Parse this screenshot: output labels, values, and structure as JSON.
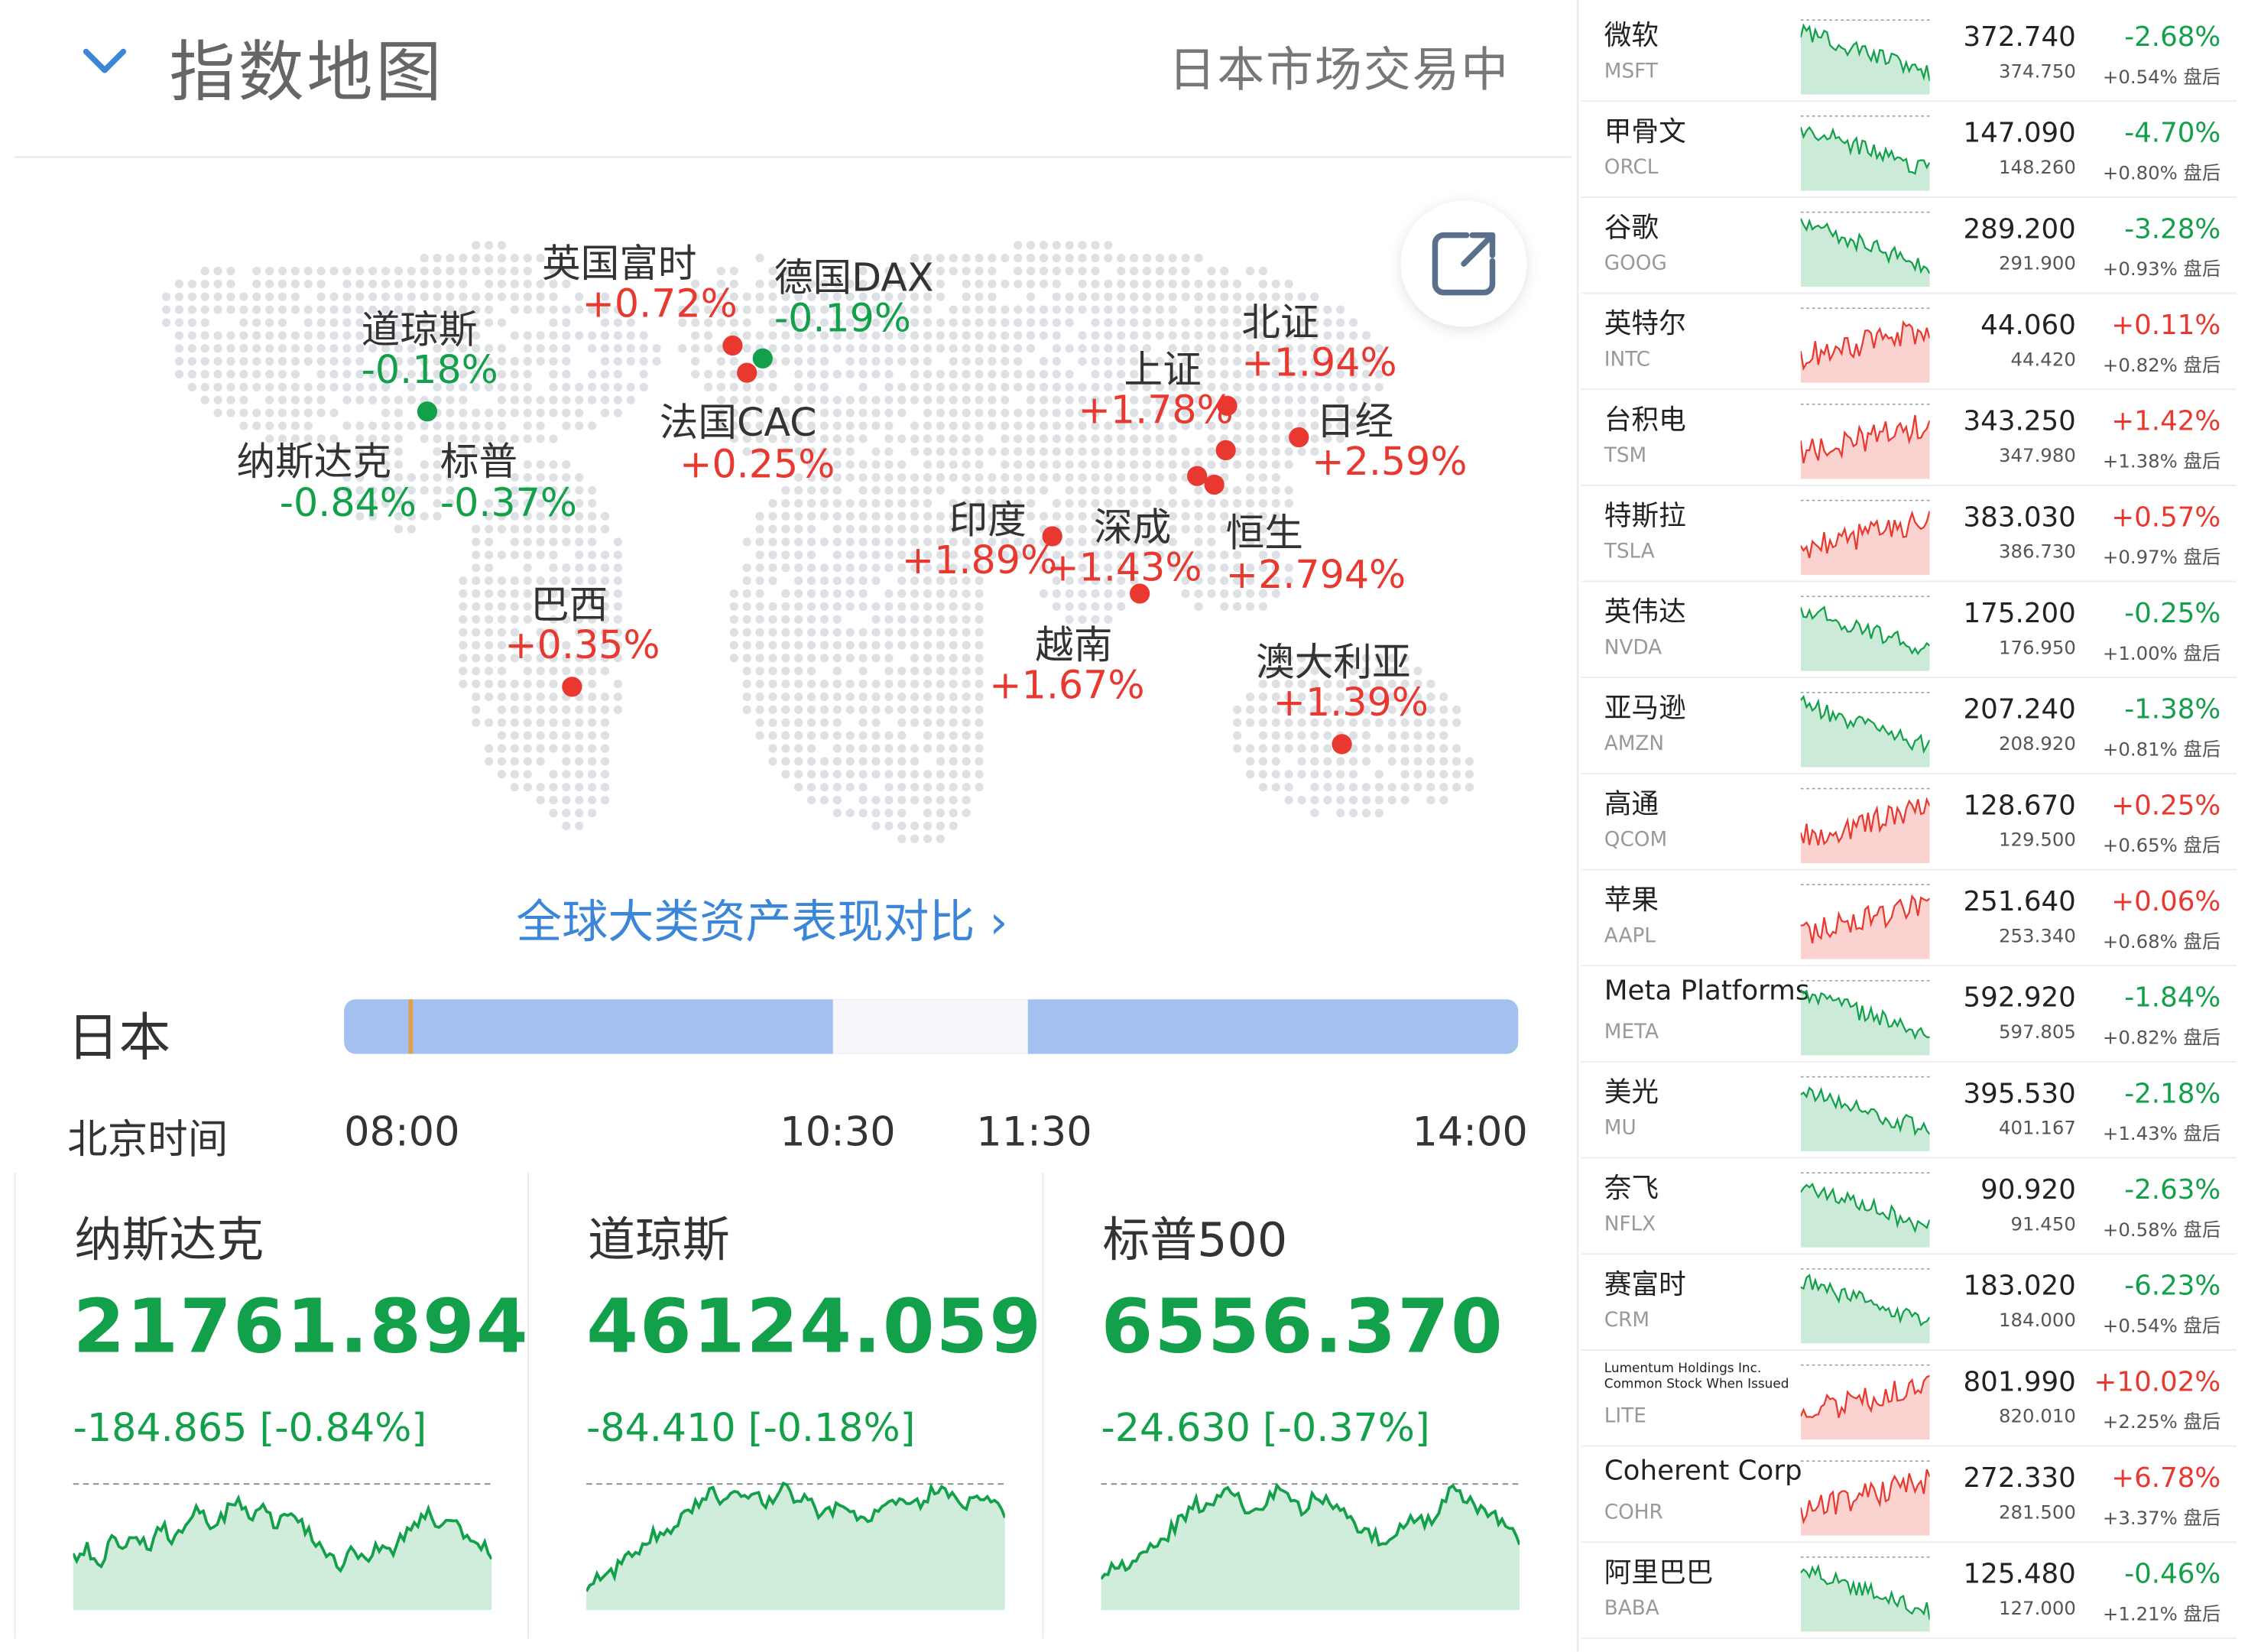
{
  "header": {
    "title": "指数地图",
    "status": "日本市场交易中"
  },
  "map_markers": [
    {
      "name": "道琼斯",
      "value": "-0.18%",
      "color": "green"
    },
    {
      "name": "纳斯达克",
      "value": "-0.84%",
      "color": "green"
    },
    {
      "name": "标普",
      "value": "-0.37%",
      "color": "green"
    },
    {
      "name": "英国富时",
      "value": "+0.72%",
      "color": "red"
    },
    {
      "name": "德国DAX",
      "value": "-0.19%",
      "color": "green"
    },
    {
      "name": "法国CAC",
      "value": "+0.25%",
      "color": "red"
    },
    {
      "name": "北证",
      "value": "+1.94%",
      "color": "red"
    },
    {
      "name": "上证",
      "value": "+1.78%",
      "color": "red"
    },
    {
      "name": "日经",
      "value": "+2.59%",
      "color": "red"
    },
    {
      "name": "印度",
      "value": "+1.89%",
      "color": "red"
    },
    {
      "name": "深成",
      "value": "+1.43%",
      "color": "red"
    },
    {
      "name": "恒生",
      "value": "+2.794%",
      "color": "red"
    },
    {
      "name": "巴西",
      "value": "+0.35%",
      "color": "red"
    },
    {
      "name": "越南",
      "value": "+1.67%",
      "color": "red"
    },
    {
      "name": "澳大利亚",
      "value": "+1.39%",
      "color": "red"
    }
  ],
  "compare_link": "全球大类资产表现对比 ›",
  "timeline": {
    "market": "日本",
    "label": "北京时间",
    "times": [
      "08:00",
      "10:30",
      "11:30",
      "14:00"
    ]
  },
  "indices": [
    {
      "name": "纳斯达克",
      "value": "21761.894",
      "change": "-184.865 [-0.84%]",
      "series": [
        0.35,
        0.45,
        0.3,
        0.5,
        0.4,
        0.55,
        0.45,
        0.62,
        0.5,
        0.7,
        0.75,
        0.6,
        0.72,
        0.85,
        0.7,
        0.78,
        0.6,
        0.75,
        0.65,
        0.5,
        0.38,
        0.3,
        0.42,
        0.35,
        0.45,
        0.4,
        0.55,
        0.62,
        0.7,
        0.58,
        0.66,
        0.55,
        0.45,
        0.4
      ]
    },
    {
      "name": "道琼斯",
      "value": "46124.059",
      "change": "-84.410 [-0.18%]",
      "series": [
        0.1,
        0.2,
        0.25,
        0.38,
        0.45,
        0.55,
        0.6,
        0.72,
        0.8,
        0.88,
        0.82,
        0.9,
        0.86,
        0.78,
        0.92,
        0.85,
        0.8,
        0.7,
        0.75,
        0.72,
        0.68,
        0.74,
        0.8,
        0.76,
        0.82,
        0.9,
        0.85,
        0.8,
        0.84,
        0.78,
        0.72
      ]
    },
    {
      "name": "标普500",
      "value": "6556.370",
      "change": "-24.630 [-0.37%]",
      "series": [
        0.2,
        0.28,
        0.3,
        0.42,
        0.5,
        0.55,
        0.68,
        0.8,
        0.75,
        0.92,
        0.85,
        0.7,
        0.78,
        0.9,
        0.82,
        0.75,
        0.88,
        0.8,
        0.72,
        0.6,
        0.55,
        0.48,
        0.6,
        0.7,
        0.62,
        0.72,
        0.9,
        0.82,
        0.75,
        0.7,
        0.6,
        0.5
      ]
    }
  ],
  "stocks": [
    {
      "name": "微软",
      "ticker": "MSFT",
      "price": "372.740",
      "pct": "-2.68%",
      "after_price": "374.750",
      "after": "+0.54% 盘后",
      "trend": "down"
    },
    {
      "name": "甲骨文",
      "ticker": "ORCL",
      "price": "147.090",
      "pct": "-4.70%",
      "after_price": "148.260",
      "after": "+0.80% 盘后",
      "trend": "down"
    },
    {
      "name": "谷歌",
      "ticker": "GOOG",
      "price": "289.200",
      "pct": "-3.28%",
      "after_price": "291.900",
      "after": "+0.93% 盘后",
      "trend": "down"
    },
    {
      "name": "英特尔",
      "ticker": "INTC",
      "price": "44.060",
      "pct": "+0.11%",
      "after_price": "44.420",
      "after": "+0.82% 盘后",
      "trend": "up"
    },
    {
      "name": "台积电",
      "ticker": "TSM",
      "price": "343.250",
      "pct": "+1.42%",
      "after_price": "347.980",
      "after": "+1.38% 盘后",
      "trend": "up"
    },
    {
      "name": "特斯拉",
      "ticker": "TSLA",
      "price": "383.030",
      "pct": "+0.57%",
      "after_price": "386.730",
      "after": "+0.97% 盘后",
      "trend": "up"
    },
    {
      "name": "英伟达",
      "ticker": "NVDA",
      "price": "175.200",
      "pct": "-0.25%",
      "after_price": "176.950",
      "after": "+1.00% 盘后",
      "trend": "down"
    },
    {
      "name": "亚马逊",
      "ticker": "AMZN",
      "price": "207.240",
      "pct": "-1.38%",
      "after_price": "208.920",
      "after": "+0.81% 盘后",
      "trend": "down"
    },
    {
      "name": "高通",
      "ticker": "QCOM",
      "price": "128.670",
      "pct": "+0.25%",
      "after_price": "129.500",
      "after": "+0.65% 盘后",
      "trend": "up"
    },
    {
      "name": "苹果",
      "ticker": "AAPL",
      "price": "251.640",
      "pct": "+0.06%",
      "after_price": "253.340",
      "after": "+0.68% 盘后",
      "trend": "up"
    },
    {
      "name": "Meta Platforms",
      "ticker": "META",
      "price": "592.920",
      "pct": "-1.84%",
      "after_price": "597.805",
      "after": "+0.82% 盘后",
      "trend": "down"
    },
    {
      "name": "美光",
      "ticker": "MU",
      "price": "395.530",
      "pct": "-2.18%",
      "after_price": "401.167",
      "after": "+1.43% 盘后",
      "trend": "down"
    },
    {
      "name": "奈飞",
      "ticker": "NFLX",
      "price": "90.920",
      "pct": "-2.63%",
      "after_price": "91.450",
      "after": "+0.58% 盘后",
      "trend": "down"
    },
    {
      "name": "赛富时",
      "ticker": "CRM",
      "price": "183.020",
      "pct": "-6.23%",
      "after_price": "184.000",
      "after": "+0.54% 盘后",
      "trend": "down"
    },
    {
      "name": "Lumentum Holdings Inc. Common Stock When Issued",
      "ticker": "LITE",
      "price": "801.990",
      "pct": "+10.02%",
      "after_price": "820.010",
      "after": "+2.25% 盘后",
      "trend": "up"
    },
    {
      "name": "Coherent Corp",
      "ticker": "COHR",
      "price": "272.330",
      "pct": "+6.78%",
      "after_price": "281.500",
      "after": "+3.37% 盘后",
      "trend": "up"
    },
    {
      "name": "阿里巴巴",
      "ticker": "BABA",
      "price": "125.480",
      "pct": "-0.46%",
      "after_price": "127.000",
      "after": "+1.21% 盘后",
      "trend": "down"
    }
  ],
  "colors": {
    "up": "#e8382f",
    "down": "#13a04a",
    "link": "#3b86d8",
    "timeline_bar": "#a3c0f0"
  }
}
